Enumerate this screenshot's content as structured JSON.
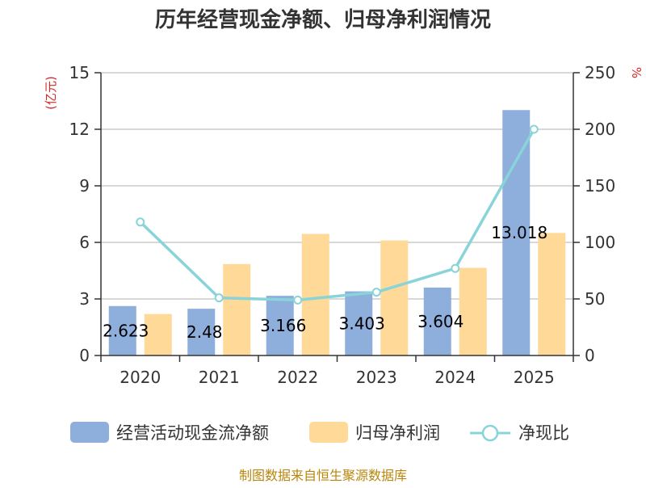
{
  "chart_data": {
    "type": "bar",
    "title": "历年经营现金净额、归母净利润情况",
    "categories": [
      "2020",
      "2021",
      "2022",
      "2023",
      "2024",
      "2025"
    ],
    "series": [
      {
        "name": "经营活动现金流净额",
        "type": "bar",
        "axis": "left",
        "color": "#8eaedc",
        "values": [
          2.623,
          2.48,
          3.166,
          3.403,
          3.604,
          13.018
        ],
        "labels": [
          "2.623",
          "2.48",
          "3.166",
          "3.403",
          "3.604",
          "13.018"
        ]
      },
      {
        "name": "归母净利润",
        "type": "bar",
        "axis": "left",
        "color": "#ffd998",
        "values": [
          2.2,
          4.85,
          6.45,
          6.1,
          4.65,
          6.5
        ]
      },
      {
        "name": "净现比",
        "type": "line",
        "axis": "right",
        "color": "#88d4d8",
        "values": [
          118,
          51,
          49,
          56,
          77,
          200
        ]
      }
    ],
    "y_left": {
      "unit": "(亿元)",
      "min": 0,
      "max": 15,
      "ticks": [
        "0",
        "3",
        "6",
        "9",
        "12",
        "15"
      ]
    },
    "y_right": {
      "unit": "%",
      "min": 0,
      "max": 250,
      "ticks": [
        "0",
        "50",
        "100",
        "150",
        "200",
        "250"
      ]
    },
    "grid": true,
    "legend_position": "bottom"
  },
  "source": "制图数据来自恒生聚源数据库"
}
